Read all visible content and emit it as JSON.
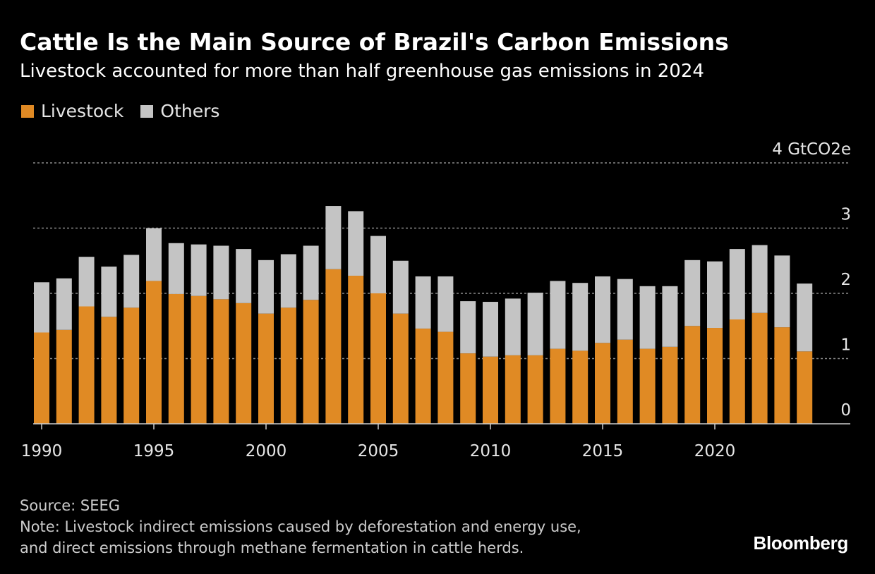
{
  "header": {
    "title": "Cattle Is the Main Source of Brazil's Carbon Emissions",
    "subtitle": "Livestock accounted for more than half greenhouse gas emissions in 2024"
  },
  "legend": {
    "items": [
      {
        "label": "Livestock",
        "color": "#e08a24"
      },
      {
        "label": "Others",
        "color": "#c4c4c4"
      }
    ]
  },
  "footer": {
    "source": "Source: SEEG",
    "note_line1": "Note: Livestock indirect emissions caused by deforestation and energy use,",
    "note_line2": "and direct emissions through methane fermentation in cattle herds."
  },
  "brand": "Bloomberg",
  "chart_data": {
    "type": "bar",
    "stacked": true,
    "x": [
      1990,
      1991,
      1992,
      1993,
      1994,
      1995,
      1996,
      1997,
      1998,
      1999,
      2000,
      2001,
      2002,
      2003,
      2004,
      2005,
      2006,
      2007,
      2008,
      2009,
      2010,
      2011,
      2012,
      2013,
      2014,
      2015,
      2016,
      2017,
      2018,
      2019,
      2020,
      2021,
      2022,
      2023,
      2024
    ],
    "series": [
      {
        "name": "Livestock",
        "color": "#e08a24",
        "values": [
          1.4,
          1.44,
          1.8,
          1.64,
          1.78,
          2.19,
          1.99,
          1.96,
          1.91,
          1.85,
          1.69,
          1.78,
          1.9,
          2.37,
          2.27,
          2.0,
          1.69,
          1.46,
          1.41,
          1.08,
          1.03,
          1.05,
          1.05,
          1.15,
          1.12,
          1.24,
          1.29,
          1.15,
          1.18,
          1.5,
          1.47,
          1.6,
          1.7,
          1.48,
          1.11
        ]
      },
      {
        "name": "Others",
        "color": "#c4c4c4",
        "values": [
          0.77,
          0.79,
          0.76,
          0.77,
          0.81,
          0.81,
          0.78,
          0.79,
          0.82,
          0.83,
          0.82,
          0.82,
          0.83,
          0.97,
          0.99,
          0.88,
          0.81,
          0.8,
          0.85,
          0.8,
          0.84,
          0.87,
          0.96,
          1.04,
          1.04,
          1.02,
          0.93,
          0.96,
          0.93,
          1.01,
          1.02,
          1.08,
          1.04,
          1.1,
          1.04
        ]
      }
    ],
    "xticks": [
      1990,
      1995,
      2000,
      2005,
      2010,
      2015,
      2020
    ],
    "yticks": [
      {
        "value": 0,
        "label": "0"
      },
      {
        "value": 1,
        "label": "1"
      },
      {
        "value": 2,
        "label": "2"
      },
      {
        "value": 3,
        "label": "3"
      },
      {
        "value": 4,
        "label": "4 GtCO2e"
      }
    ],
    "ylim": [
      0,
      4
    ],
    "grid": true,
    "gridline_color": "#8a8a8a",
    "axis_color": "#cccccc",
    "legend_position": "top-left",
    "y_axis_side": "right"
  }
}
